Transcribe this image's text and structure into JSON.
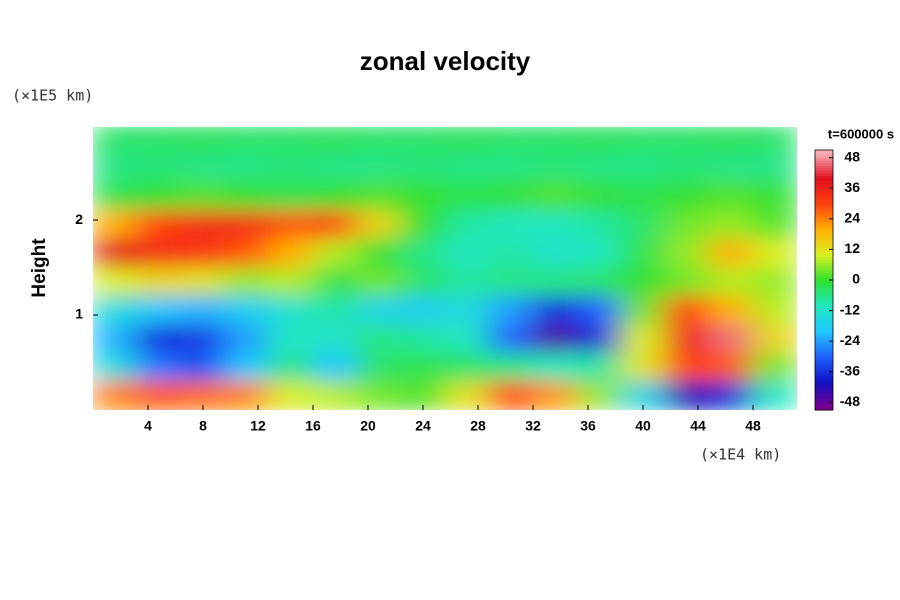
{
  "chart_data": {
    "type": "contour",
    "title": "zonal velocity",
    "x_unit": "(×1E4 km)",
    "y_unit": "(×1E5 km)",
    "y_label": "Height",
    "x": [
      1.6,
      4.8,
      8,
      11.2,
      14.4,
      17.6,
      20.8,
      24,
      27.2,
      30.4,
      33.6,
      36.8,
      40,
      43.2,
      46.4,
      49.6
    ],
    "y": [
      2.85,
      2.55,
      2.25,
      1.95,
      1.65,
      1.35,
      1.05,
      0.75,
      0.45,
      0.15
    ],
    "z": [
      [
        -4,
        -4,
        -3,
        -4,
        -4,
        -3,
        -4,
        -4,
        -3,
        -4,
        -4,
        -3,
        -4,
        -4,
        -3,
        -4
      ],
      [
        -6,
        -5,
        -6,
        -6,
        -5,
        -6,
        -6,
        -5,
        -6,
        -6,
        -5,
        -6,
        -6,
        -5,
        -6,
        -6
      ],
      [
        -2,
        0,
        2,
        0,
        -2,
        0,
        2,
        0,
        -2,
        0,
        2,
        0,
        -2,
        0,
        2,
        0
      ],
      [
        20,
        30,
        34,
        34,
        28,
        30,
        14,
        0,
        -8,
        -10,
        -10,
        -8,
        -4,
        4,
        6,
        2
      ],
      [
        40,
        34,
        32,
        28,
        20,
        8,
        0,
        -6,
        -10,
        -8,
        -12,
        -10,
        -2,
        6,
        20,
        10
      ],
      [
        10,
        14,
        12,
        6,
        8,
        -2,
        4,
        -4,
        -8,
        -6,
        -6,
        -4,
        0,
        4,
        8,
        6
      ],
      [
        -14,
        -20,
        -22,
        -18,
        -12,
        -8,
        -16,
        -18,
        -14,
        -24,
        -36,
        -30,
        4,
        30,
        20,
        8
      ],
      [
        -22,
        -36,
        -34,
        -24,
        -10,
        -12,
        -6,
        -8,
        -10,
        -30,
        -46,
        -36,
        10,
        36,
        46,
        14
      ],
      [
        -14,
        -28,
        -32,
        -20,
        -6,
        -20,
        -4,
        -2,
        -4,
        -6,
        -10,
        -8,
        12,
        30,
        28,
        4
      ],
      [
        24,
        28,
        26,
        24,
        10,
        8,
        4,
        2,
        12,
        30,
        22,
        6,
        -16,
        -42,
        -36,
        -10
      ]
    ],
    "xlim": [
      0,
      51.2
    ],
    "ylim": [
      0,
      2.98
    ],
    "xticks": [
      4,
      8,
      12,
      16,
      20,
      24,
      28,
      32,
      36,
      40,
      44,
      48
    ],
    "yticks": [
      1,
      2
    ],
    "colorbar": {
      "label": "t=600000 s",
      "lim": [
        -51,
        51
      ],
      "ticks": [
        48,
        36,
        24,
        12,
        0,
        -12,
        -24,
        -36,
        -48
      ],
      "colormap": [
        {
          "value": -50,
          "color": "#7a0090"
        },
        {
          "value": -40,
          "color": "#1010c0"
        },
        {
          "value": -30,
          "color": "#2060ff"
        },
        {
          "value": -20,
          "color": "#20c8ff"
        },
        {
          "value": -10,
          "color": "#20e8c0"
        },
        {
          "value": 0,
          "color": "#30e030"
        },
        {
          "value": 10,
          "color": "#d8f020"
        },
        {
          "value": 20,
          "color": "#ffb000"
        },
        {
          "value": 30,
          "color": "#ff4010"
        },
        {
          "value": 40,
          "color": "#e01020"
        },
        {
          "value": 50,
          "color": "#f8b0b8"
        }
      ]
    }
  }
}
